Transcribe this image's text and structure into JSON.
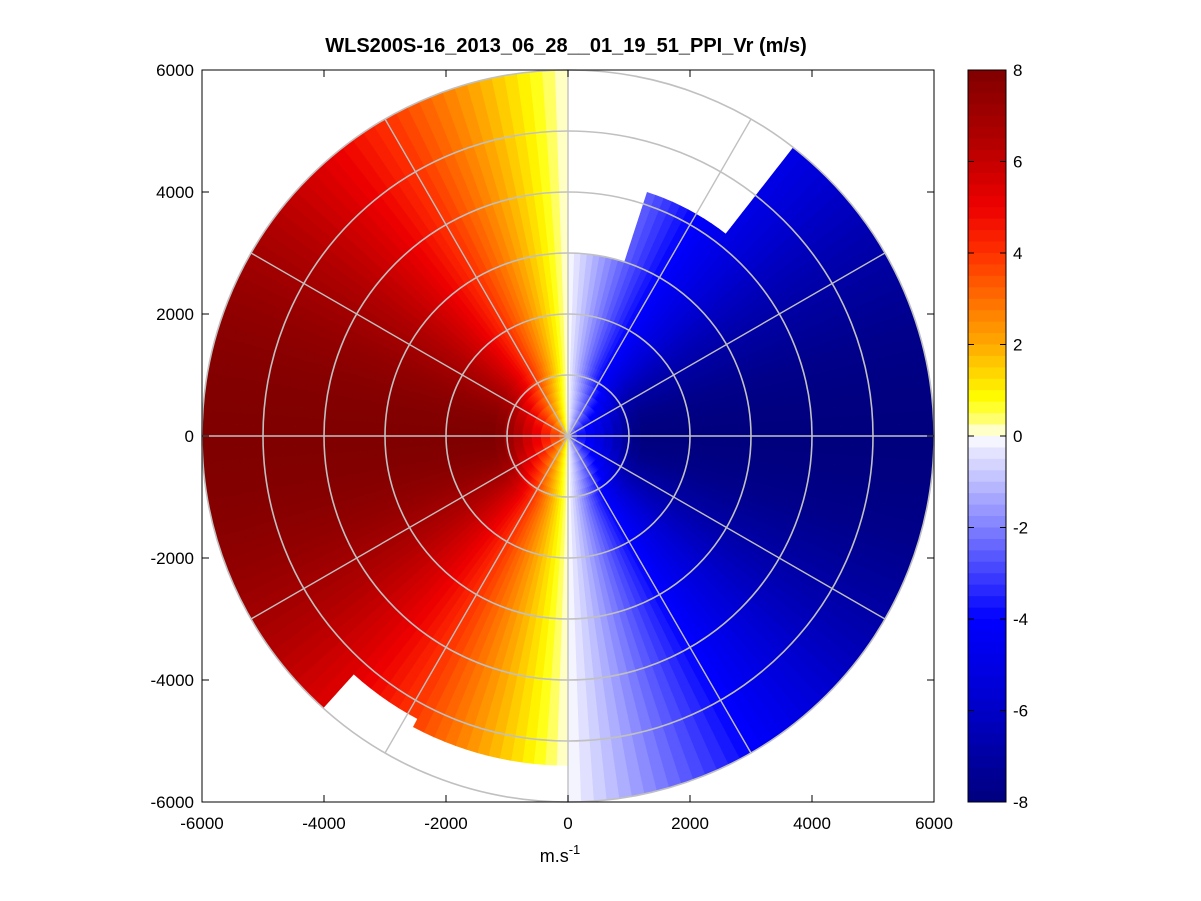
{
  "chart_data": {
    "type": "heatmap",
    "subtype": "polar-ppi",
    "title": "WLS200S-16_2013_06_28__01_19_51_PPI_Vr (m/s)",
    "xlabel_base": "m.s",
    "xlabel_exponent": "-1",
    "ylabel": "",
    "xlim": [
      -6000,
      6000
    ],
    "ylim": [
      -6000,
      6000
    ],
    "xticks": [
      -6000,
      -4000,
      -2000,
      0,
      2000,
      4000,
      6000
    ],
    "yticks": [
      -6000,
      -4000,
      -2000,
      0,
      2000,
      4000,
      6000
    ],
    "xtick_labels": [
      "-6000",
      "-4000",
      "-2000",
      "0",
      "2000",
      "4000",
      "6000"
    ],
    "ytick_labels": [
      "-6000",
      "-4000",
      "-2000",
      "0",
      "2000",
      "4000",
      "6000"
    ],
    "max_range": 6000,
    "range_rings": [
      1000,
      2000,
      3000,
      4000,
      5000,
      6000
    ],
    "spoke_angles_deg": [
      0,
      30,
      60,
      90,
      120,
      150,
      180,
      210,
      240,
      270,
      300,
      330
    ],
    "colorbar": {
      "min": -8,
      "max": 8,
      "ticks": [
        -8,
        -6,
        -4,
        -2,
        0,
        2,
        4,
        6,
        8
      ],
      "tick_labels": [
        "-8",
        "-6",
        "-4",
        "-2",
        "0",
        "2",
        "4",
        "6",
        "8"
      ],
      "stops": [
        {
          "value": -8,
          "color": "#00007f"
        },
        {
          "value": -5.5,
          "color": "#0000d8"
        },
        {
          "value": -4,
          "color": "#0000ff"
        },
        {
          "value": -2,
          "color": "#8080ff"
        },
        {
          "value": -0.3,
          "color": "#e8e8ff"
        },
        {
          "value": 0,
          "color": "#ffffff"
        },
        {
          "value": 0.3,
          "color": "#ffff80"
        },
        {
          "value": 0.8,
          "color": "#ffff00"
        },
        {
          "value": 2,
          "color": "#ffaa00"
        },
        {
          "value": 4,
          "color": "#ff3000"
        },
        {
          "value": 5,
          "color": "#ee0000"
        },
        {
          "value": 6.5,
          "color": "#b00000"
        },
        {
          "value": 8,
          "color": "#800000"
        }
      ]
    },
    "field": {
      "description_model": "radial velocity Vr = -8 * sin(azimuth) for azimuth measured clockwise from north; positive (red) to west, negative (blue) to east",
      "peak_speed": 8,
      "azimuth_start_deg": 0,
      "azimuth_step_deg": 2,
      "range_step": 150
    },
    "no_data_sectors_deg": [
      {
        "from": 0,
        "to": 18,
        "min_range": 3000,
        "max_range": 6000
      },
      {
        "from": 18,
        "to": 38,
        "min_range": 4200,
        "max_range": 6000
      },
      {
        "from": 180,
        "to": 208,
        "min_range": 5400,
        "max_range": 6000
      },
      {
        "from": 208,
        "to": 222,
        "min_range": 5300,
        "max_range": 6000
      }
    ],
    "colors": {
      "axes": "#000000",
      "grid": "#c0c0c0",
      "background": "#ffffff"
    }
  }
}
